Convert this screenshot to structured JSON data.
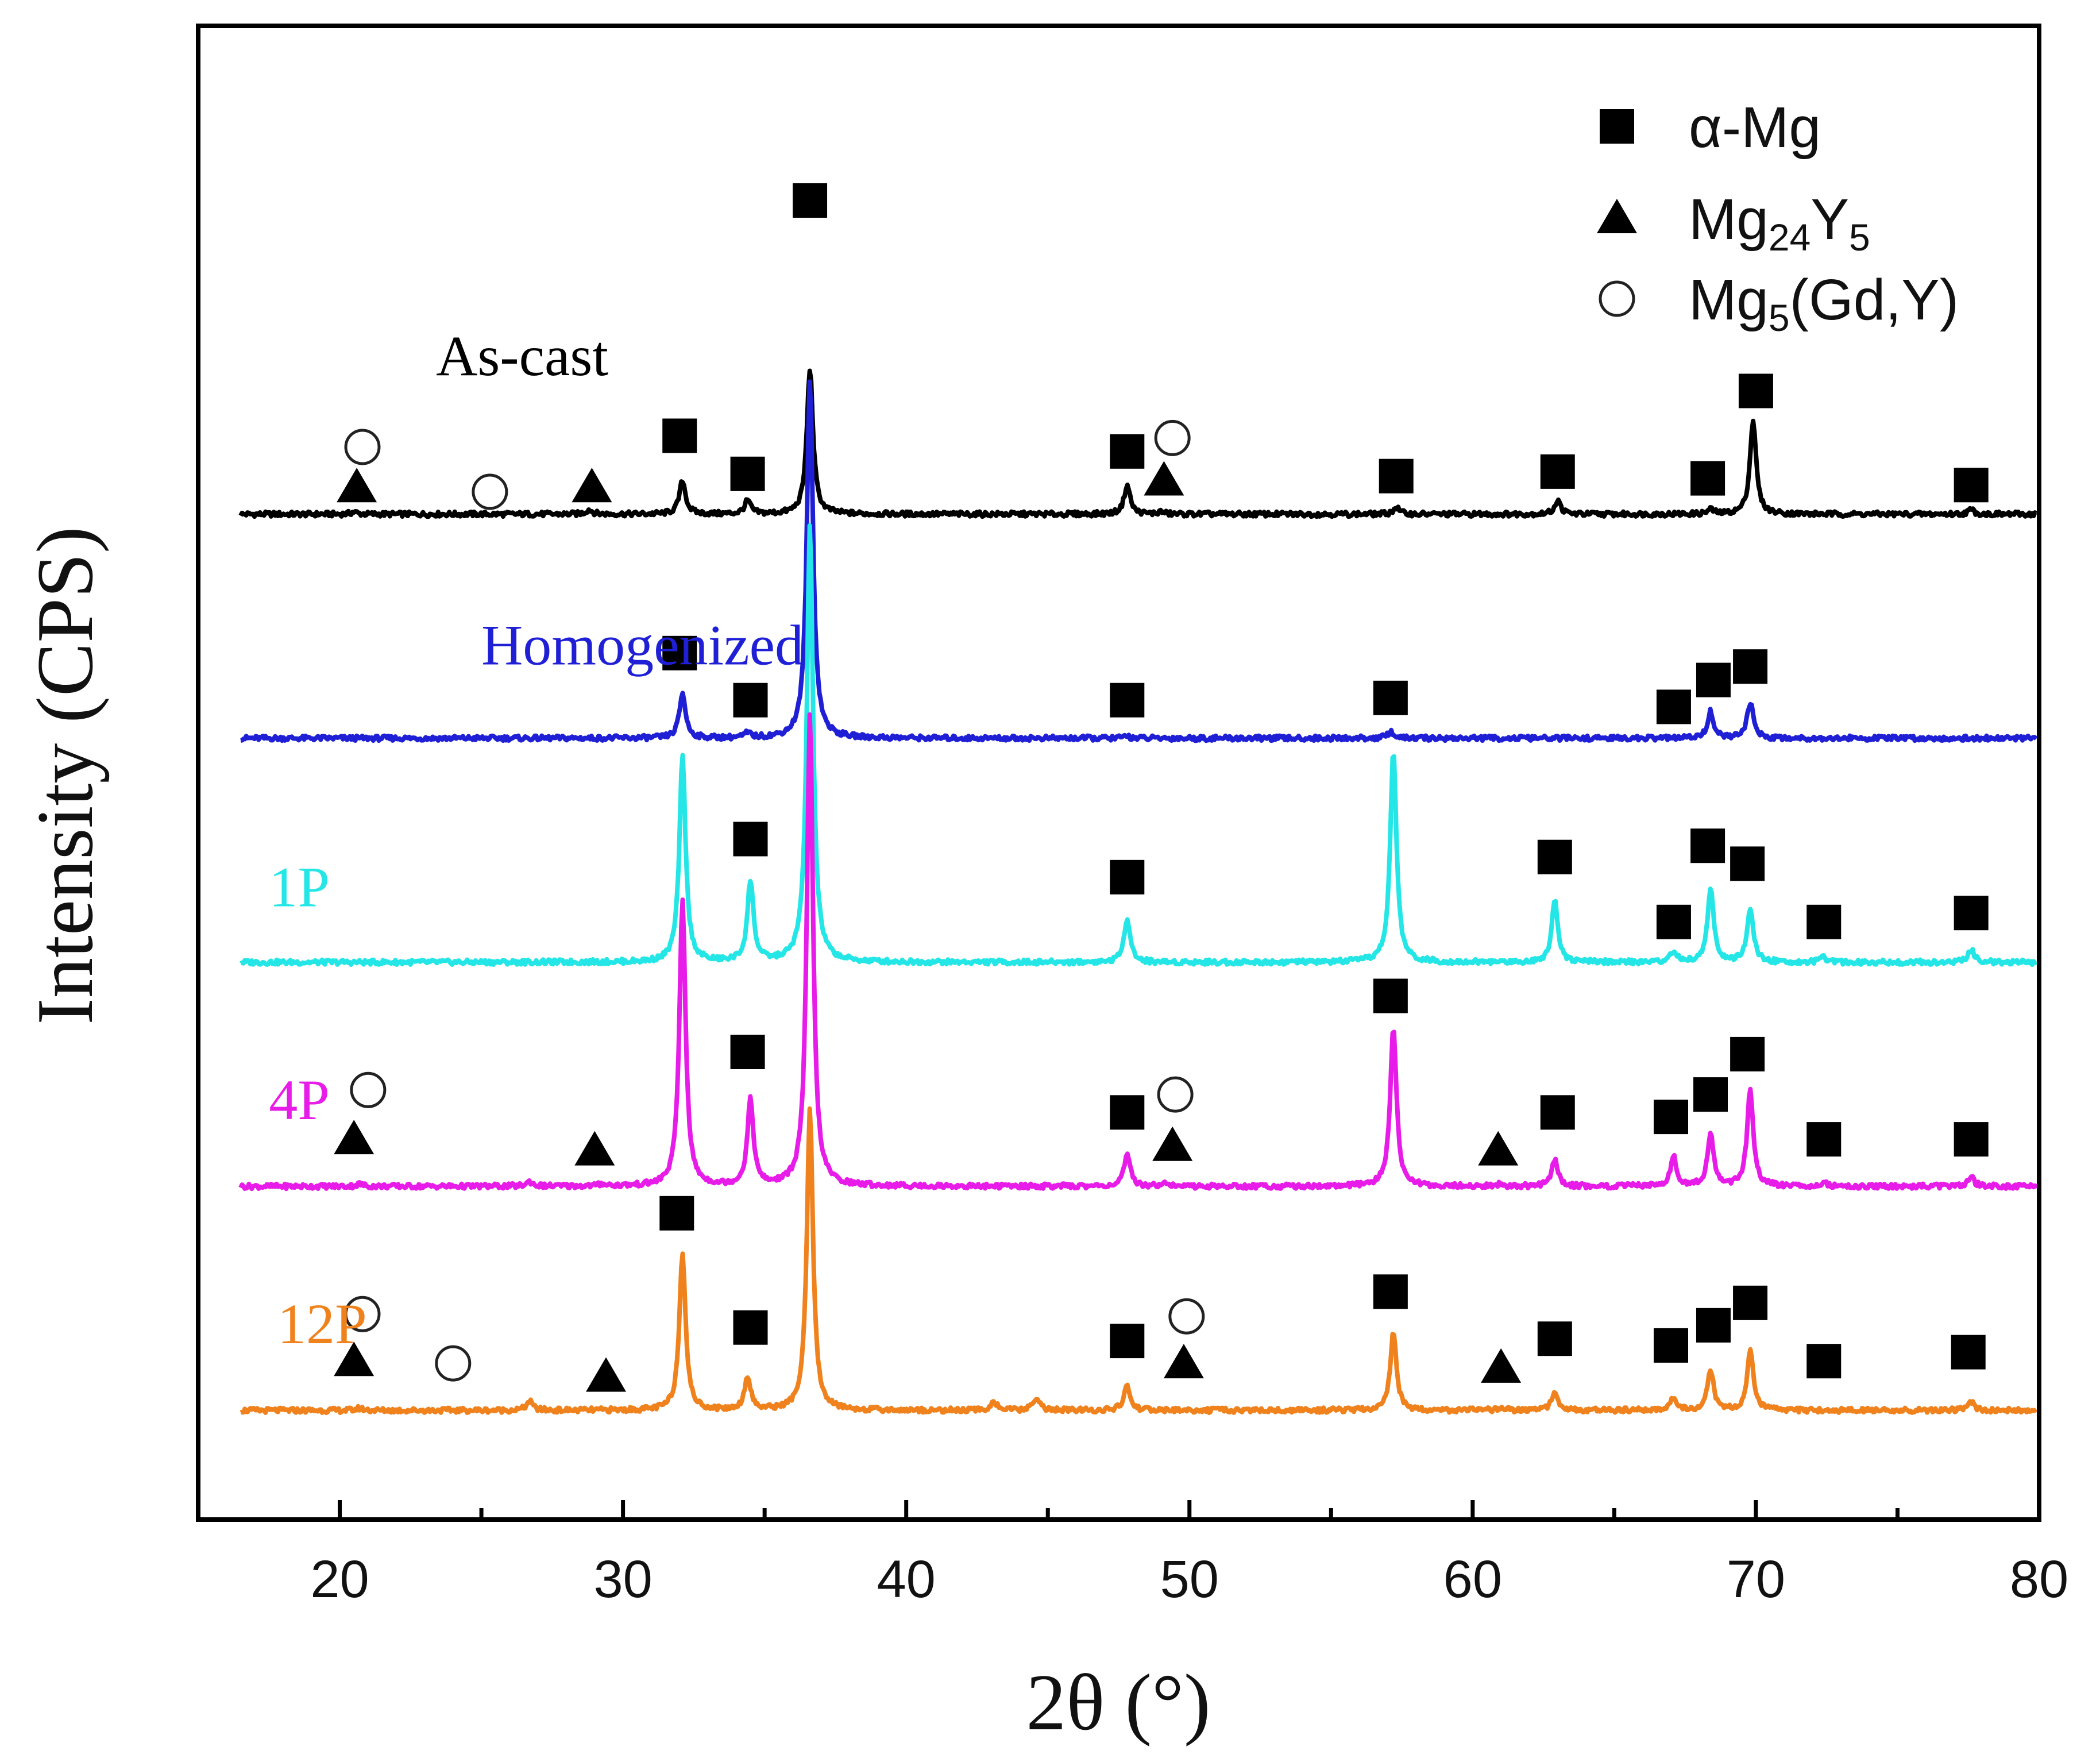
{
  "chart_data": {
    "type": "line",
    "title": "",
    "xlabel": "2θ (°)",
    "ylabel": "Intensity (CPS)",
    "xlim": [
      15,
      80
    ],
    "x_ticks": [
      20,
      30,
      40,
      50,
      60,
      70,
      80
    ],
    "x_tick_labels": [
      "20",
      "30",
      "40",
      "50",
      "60",
      "70",
      "80"
    ],
    "y_units": "normalized intensity, stacked; baseline offset per series",
    "legend": {
      "placement": "top-right",
      "entries": [
        {
          "marker": "square",
          "text": "α-Mg",
          "main": "α-Mg",
          "sub": ""
        },
        {
          "marker": "triangle",
          "text": "Mg24Y5",
          "main_parts": [
            "Mg",
            "Y"
          ],
          "subs": [
            "24",
            "5"
          ]
        },
        {
          "marker": "circle",
          "text": "Mg5(Gd,Y)",
          "main_parts": [
            "Mg",
            "(Gd,Y)"
          ],
          "subs": [
            "5",
            ""
          ]
        }
      ]
    },
    "series": [
      {
        "name": "As-cast",
        "color": "#000000",
        "offset": 4.0,
        "label_x": 23.4,
        "label_lift": 0.62,
        "peaks": [
          [
            20.5,
            0.01
          ],
          [
            28.8,
            0.02
          ],
          [
            32.1,
            0.15
          ],
          [
            34.4,
            0.06
          ],
          [
            36.6,
            0.65
          ],
          [
            47.8,
            0.13
          ],
          [
            49.0,
            0.01
          ],
          [
            57.3,
            0.03
          ],
          [
            63.0,
            0.06
          ],
          [
            68.4,
            0.02
          ],
          [
            69.9,
            0.42
          ],
          [
            77.6,
            0.02
          ]
        ],
        "markers": [
          {
            "shape": "circle",
            "x": 20.8,
            "lift": 0.3
          },
          {
            "shape": "triangle",
            "x": 20.6,
            "lift": 0.12
          },
          {
            "shape": "circle",
            "x": 25.3,
            "lift": 0.1
          },
          {
            "shape": "triangle",
            "x": 28.9,
            "lift": 0.12
          },
          {
            "shape": "square",
            "x": 32.0,
            "lift": 0.35
          },
          {
            "shape": "square",
            "x": 34.4,
            "lift": 0.18
          },
          {
            "shape": "square",
            "x": 36.6,
            "lift": 1.4
          },
          {
            "shape": "square",
            "x": 47.8,
            "lift": 0.28
          },
          {
            "shape": "circle",
            "x": 49.4,
            "lift": 0.34
          },
          {
            "shape": "triangle",
            "x": 49.1,
            "lift": 0.15
          },
          {
            "shape": "square",
            "x": 57.3,
            "lift": 0.17
          },
          {
            "shape": "square",
            "x": 63.0,
            "lift": 0.19
          },
          {
            "shape": "square",
            "x": 68.3,
            "lift": 0.16
          },
          {
            "shape": "square",
            "x": 70.0,
            "lift": 0.55
          },
          {
            "shape": "square",
            "x": 77.6,
            "lift": 0.13
          }
        ]
      },
      {
        "name": "Homogenized",
        "color": "#1f1fd6",
        "offset": 3.0,
        "label_x": 25.0,
        "label_lift": 0.33,
        "peaks": [
          [
            32.1,
            0.2
          ],
          [
            34.4,
            0.02
          ],
          [
            36.6,
            1.6
          ],
          [
            47.8,
            0.01
          ],
          [
            57.1,
            0.03
          ],
          [
            68.4,
            0.12
          ],
          [
            69.8,
            0.16
          ]
        ],
        "markers": [
          {
            "shape": "square",
            "x": 32.0,
            "lift": 0.38
          },
          {
            "shape": "square",
            "x": 34.5,
            "lift": 0.17
          },
          {
            "shape": "square",
            "x": 47.8,
            "lift": 0.17
          },
          {
            "shape": "square",
            "x": 57.1,
            "lift": 0.18
          },
          {
            "shape": "square",
            "x": 67.1,
            "lift": 0.14
          },
          {
            "shape": "square",
            "x": 68.5,
            "lift": 0.26
          },
          {
            "shape": "square",
            "x": 69.8,
            "lift": 0.32
          }
        ]
      },
      {
        "name": "1P",
        "color": "#25e6e6",
        "offset": 2.0,
        "label_x": 17.5,
        "label_lift": 0.25,
        "peaks": [
          [
            32.1,
            0.92
          ],
          [
            34.5,
            0.36
          ],
          [
            36.6,
            1.95
          ],
          [
            47.8,
            0.2
          ],
          [
            57.2,
            0.95
          ],
          [
            62.9,
            0.28
          ],
          [
            67.1,
            0.05
          ],
          [
            68.4,
            0.33
          ],
          [
            69.8,
            0.24
          ],
          [
            72.4,
            0.02
          ],
          [
            77.6,
            0.06
          ]
        ],
        "markers": [
          {
            "shape": "square",
            "x": 34.5,
            "lift": 0.55
          },
          {
            "shape": "square",
            "x": 47.8,
            "lift": 0.38
          },
          {
            "shape": "square",
            "x": 62.9,
            "lift": 0.47
          },
          {
            "shape": "square",
            "x": 67.1,
            "lift": 0.18
          },
          {
            "shape": "square",
            "x": 68.3,
            "lift": 0.52
          },
          {
            "shape": "square",
            "x": 69.7,
            "lift": 0.44
          },
          {
            "shape": "square",
            "x": 72.4,
            "lift": 0.18
          },
          {
            "shape": "square",
            "x": 77.6,
            "lift": 0.22
          }
        ]
      },
      {
        "name": "4P",
        "color": "#e81ce8",
        "offset": 1.0,
        "label_x": 17.5,
        "label_lift": 0.3,
        "peaks": [
          [
            20.7,
            0.01
          ],
          [
            26.7,
            0.02
          ],
          [
            29.3,
            0.01
          ],
          [
            32.1,
            1.28
          ],
          [
            34.5,
            0.38
          ],
          [
            36.6,
            2.1
          ],
          [
            47.8,
            0.14
          ],
          [
            49.1,
            0.02
          ],
          [
            57.2,
            0.72
          ],
          [
            61.0,
            0.01
          ],
          [
            62.9,
            0.12
          ],
          [
            67.1,
            0.13
          ],
          [
            68.4,
            0.23
          ],
          [
            69.8,
            0.43
          ],
          [
            72.4,
            0.02
          ],
          [
            77.6,
            0.04
          ]
        ],
        "markers": [
          {
            "shape": "circle",
            "x": 21.0,
            "lift": 0.43
          },
          {
            "shape": "triangle",
            "x": 20.5,
            "lift": 0.21
          },
          {
            "shape": "triangle",
            "x": 29.0,
            "lift": 0.16
          },
          {
            "shape": "square",
            "x": 34.4,
            "lift": 0.6
          },
          {
            "shape": "square",
            "x": 47.8,
            "lift": 0.33
          },
          {
            "shape": "circle",
            "x": 49.5,
            "lift": 0.41
          },
          {
            "shape": "triangle",
            "x": 49.4,
            "lift": 0.18
          },
          {
            "shape": "square",
            "x": 57.1,
            "lift": 0.85
          },
          {
            "shape": "triangle",
            "x": 60.9,
            "lift": 0.16
          },
          {
            "shape": "square",
            "x": 63.0,
            "lift": 0.33
          },
          {
            "shape": "square",
            "x": 67.0,
            "lift": 0.31
          },
          {
            "shape": "square",
            "x": 68.4,
            "lift": 0.41
          },
          {
            "shape": "square",
            "x": 69.7,
            "lift": 0.59
          },
          {
            "shape": "square",
            "x": 72.4,
            "lift": 0.21
          },
          {
            "shape": "square",
            "x": 77.6,
            "lift": 0.21
          }
        ]
      },
      {
        "name": "12P",
        "color": "#f0821e",
        "offset": 0.0,
        "label_x": 17.8,
        "label_lift": 0.3,
        "peaks": [
          [
            20.7,
            0.01
          ],
          [
            26.7,
            0.04
          ],
          [
            32.1,
            0.71
          ],
          [
            34.4,
            0.15
          ],
          [
            36.6,
            1.34
          ],
          [
            43.1,
            0.04
          ],
          [
            44.6,
            0.06
          ],
          [
            47.8,
            0.11
          ],
          [
            57.2,
            0.35
          ],
          [
            61.0,
            0.01
          ],
          [
            62.9,
            0.09
          ],
          [
            67.1,
            0.06
          ],
          [
            68.4,
            0.18
          ],
          [
            69.8,
            0.27
          ],
          [
            77.6,
            0.04
          ]
        ],
        "markers": [
          {
            "shape": "circle",
            "x": 20.8,
            "lift": 0.43
          },
          {
            "shape": "triangle",
            "x": 20.5,
            "lift": 0.22
          },
          {
            "shape": "circle",
            "x": 24.0,
            "lift": 0.21
          },
          {
            "shape": "triangle",
            "x": 29.4,
            "lift": 0.15
          },
          {
            "shape": "square",
            "x": 31.9,
            "lift": 0.88
          },
          {
            "shape": "square",
            "x": 34.5,
            "lift": 0.37
          },
          {
            "shape": "square",
            "x": 47.8,
            "lift": 0.31
          },
          {
            "shape": "circle",
            "x": 49.9,
            "lift": 0.42
          },
          {
            "shape": "triangle",
            "x": 49.8,
            "lift": 0.21
          },
          {
            "shape": "square",
            "x": 57.1,
            "lift": 0.53
          },
          {
            "shape": "triangle",
            "x": 61.0,
            "lift": 0.19
          },
          {
            "shape": "square",
            "x": 62.9,
            "lift": 0.32
          },
          {
            "shape": "square",
            "x": 67.0,
            "lift": 0.29
          },
          {
            "shape": "square",
            "x": 68.5,
            "lift": 0.38
          },
          {
            "shape": "square",
            "x": 69.8,
            "lift": 0.48
          },
          {
            "shape": "square",
            "x": 72.4,
            "lift": 0.22
          },
          {
            "shape": "square",
            "x": 77.5,
            "lift": 0.26
          }
        ]
      }
    ]
  }
}
